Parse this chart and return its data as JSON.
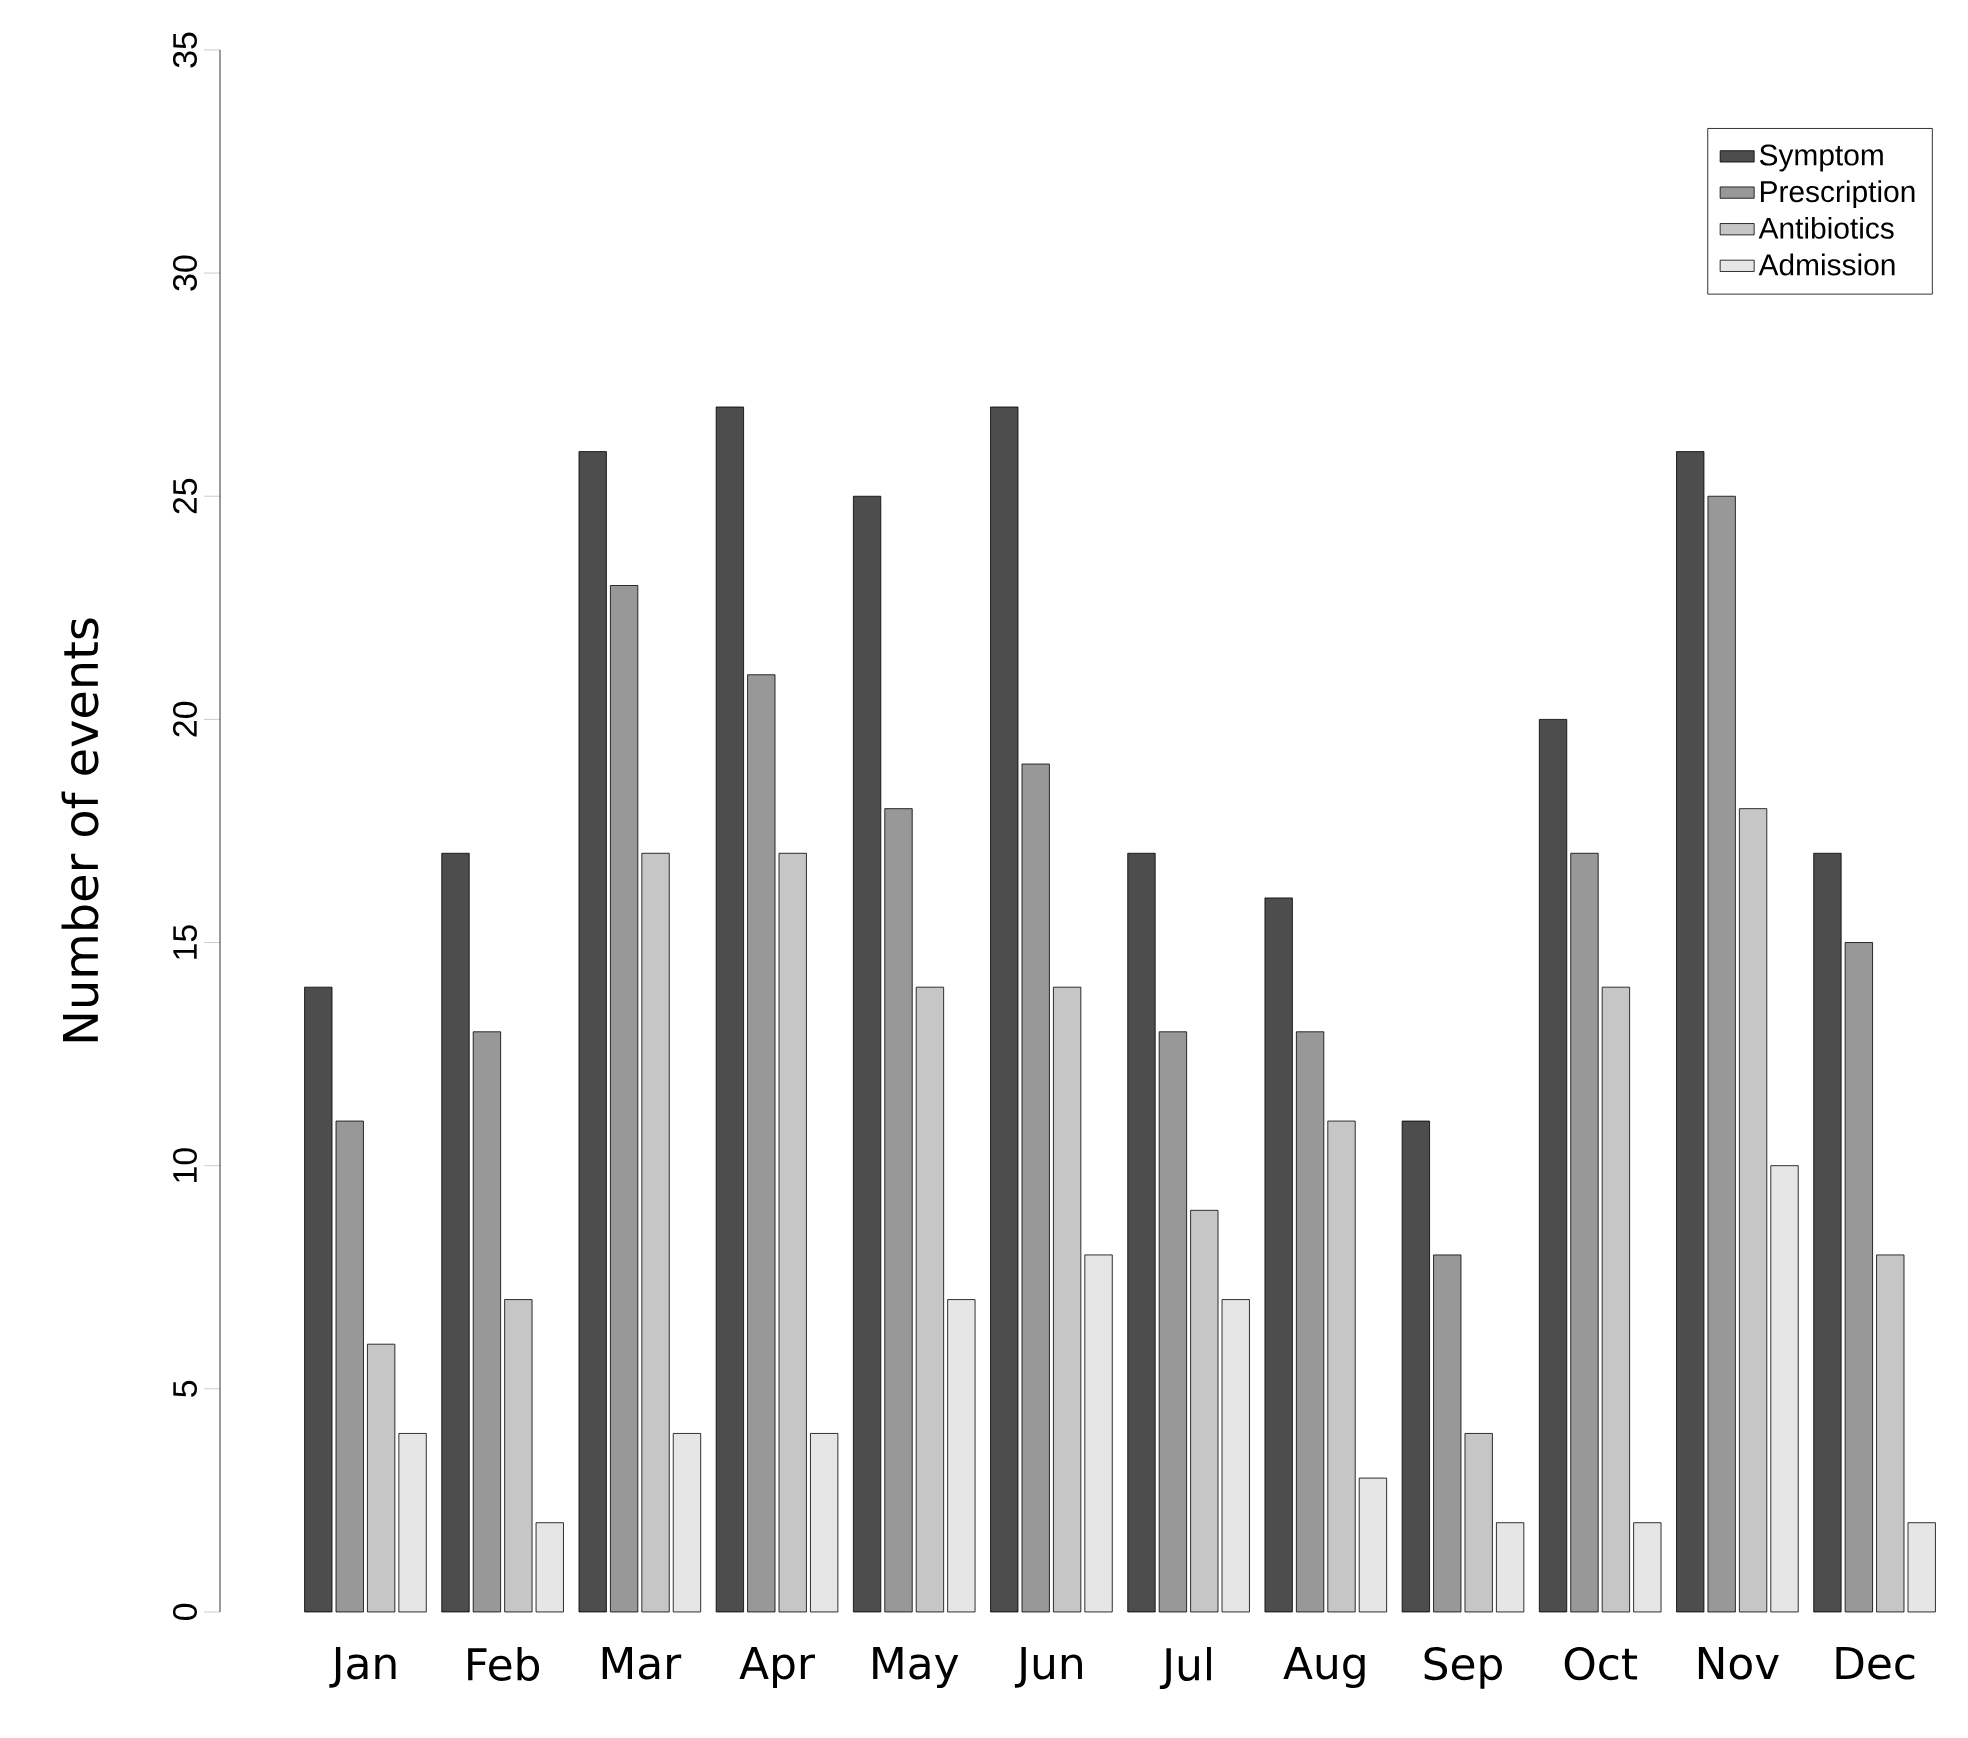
{
  "chart_data": {
    "type": "bar",
    "ylabel": "Number of events",
    "categories": [
      "Jan",
      "Feb",
      "Mar",
      "Apr",
      "May",
      "Jun",
      "Jul",
      "Aug",
      "Sep",
      "Oct",
      "Nov",
      "Dec"
    ],
    "series": [
      {
        "name": "Symptom",
        "color": "#4d4d4d",
        "values": [
          14,
          17,
          26,
          27,
          25,
          27,
          17,
          16,
          11,
          20,
          26,
          17
        ]
      },
      {
        "name": "Prescription",
        "color": "#989898",
        "values": [
          11,
          13,
          23,
          21,
          18,
          19,
          13,
          13,
          8,
          17,
          25,
          15
        ]
      },
      {
        "name": "Antibiotics",
        "color": "#c6c6c6",
        "values": [
          6,
          7,
          17,
          17,
          14,
          14,
          9,
          11,
          4,
          14,
          18,
          8
        ]
      },
      {
        "name": "Admission",
        "color": "#e6e6e6",
        "values": [
          4,
          2,
          4,
          4,
          7,
          8,
          7,
          3,
          2,
          2,
          10,
          2
        ]
      }
    ],
    "ylim": [
      0,
      35
    ],
    "yticks": [
      0,
      5,
      10,
      15,
      20,
      25,
      30,
      35
    ],
    "legend": "top right"
  }
}
